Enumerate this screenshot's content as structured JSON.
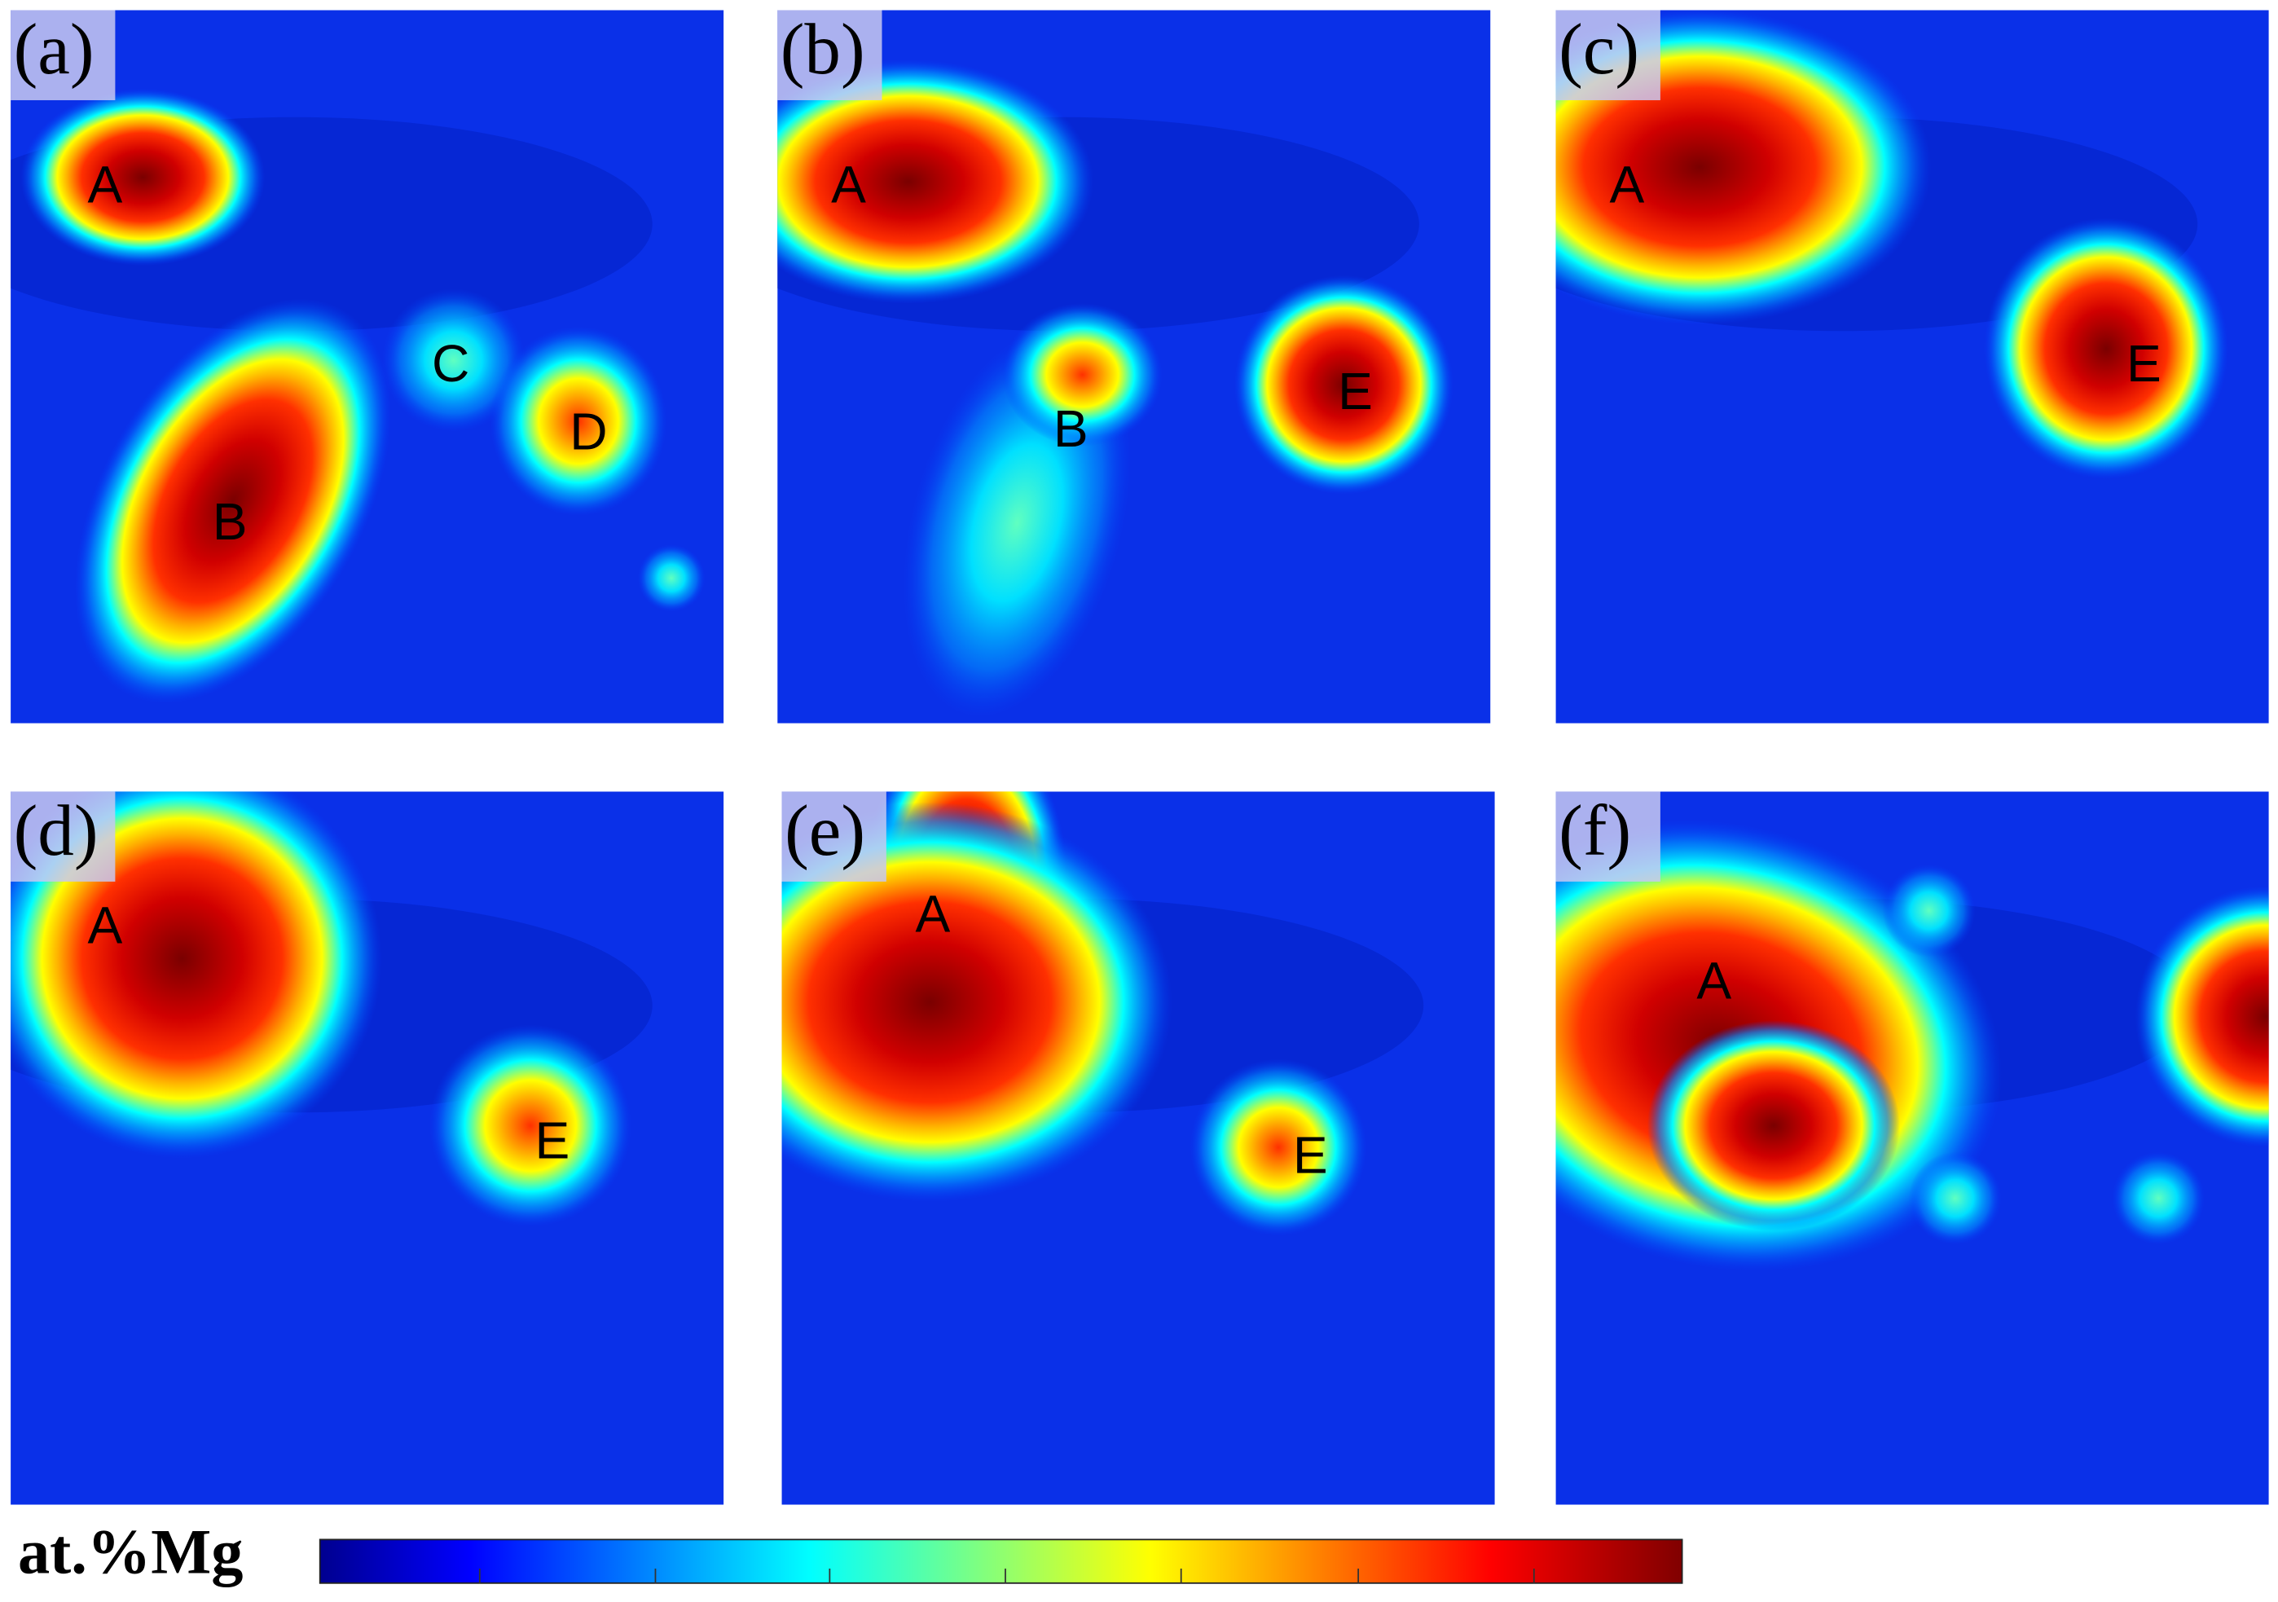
{
  "panels": [
    {
      "label": "(a)",
      "markers": [
        "A",
        "B",
        "C",
        "D"
      ]
    },
    {
      "label": "(b)",
      "markers": [
        "A",
        "B",
        "E"
      ]
    },
    {
      "label": "(c)",
      "markers": [
        "A",
        "E"
      ]
    },
    {
      "label": "(d)",
      "markers": [
        "A",
        "E"
      ]
    },
    {
      "label": "(e)",
      "markers": [
        "A",
        "E"
      ]
    },
    {
      "label": "(f)",
      "markers": [
        "A"
      ]
    }
  ],
  "colorbar": {
    "label": "at.%Mg"
  }
}
